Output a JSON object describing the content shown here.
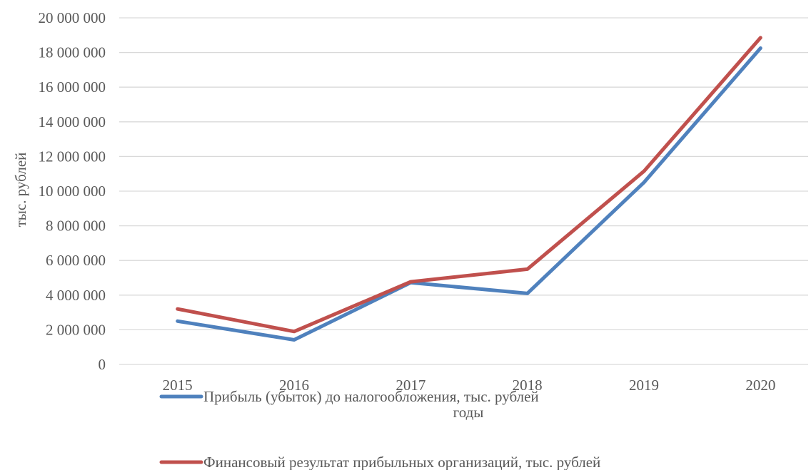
{
  "chart_data": {
    "type": "line",
    "title": "",
    "xlabel": "годы",
    "ylabel": "тыс. рублей",
    "categories": [
      "2015",
      "2016",
      "2017",
      "2018",
      "2019",
      "2020"
    ],
    "ylim": [
      0,
      20000000
    ],
    "yticks": [
      0,
      2000000,
      4000000,
      6000000,
      8000000,
      10000000,
      12000000,
      14000000,
      16000000,
      18000000,
      20000000
    ],
    "ytick_labels": [
      "0",
      "2 000 000",
      "4 000 000",
      "6 000 000",
      "8 000 000",
      "10 000 000",
      "12 000 000",
      "14 000 000",
      "16 000 000",
      "18 000 000",
      "20 000 000"
    ],
    "grid": "horizontal",
    "legend_position": "bottom",
    "series": [
      {
        "name": "Прибыль (убыток) до налогообложения, тыс. рублей",
        "color": "#4f81bd",
        "values": [
          2500000,
          1420000,
          4720000,
          4100000,
          10500000,
          18250000
        ]
      },
      {
        "name": "Финансовый результат прибыльных организаций, тыс. рублей",
        "color": "#c0504d",
        "values": [
          3200000,
          1900000,
          4770000,
          5500000,
          11150000,
          18850000
        ]
      }
    ]
  }
}
